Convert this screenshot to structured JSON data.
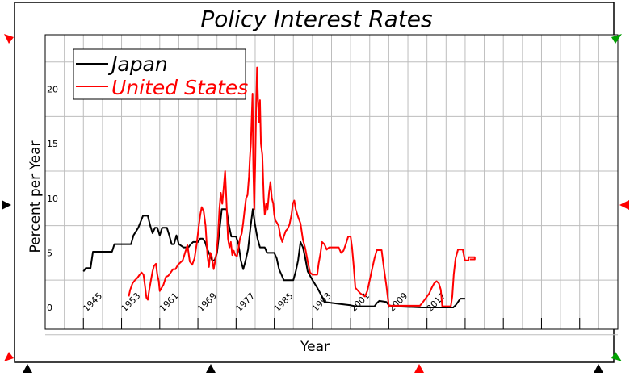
{
  "chart_data": {
    "type": "line",
    "title": "Policy Interest Rates",
    "xlabel": "Year",
    "ylabel": "Percent per Year",
    "x_ticks": [
      "1945",
      "1953",
      "1961",
      "1969",
      "1977",
      "1985",
      "1993",
      "2001",
      "2009",
      "2017"
    ],
    "y_ticks": [
      "0",
      "5",
      "10",
      "15",
      "20"
    ],
    "xlim": [
      1937,
      2057
    ],
    "ylim": [
      -2,
      25
    ],
    "grid": true,
    "legend_position": "top-left",
    "series": [
      {
        "name": "Japan",
        "color": "#000000",
        "points": [
          [
            1945.0,
            3.3
          ],
          [
            1945.5,
            3.6
          ],
          [
            1946.5,
            3.6
          ],
          [
            1947.0,
            5.1
          ],
          [
            1951.0,
            5.1
          ],
          [
            1951.5,
            5.8
          ],
          [
            1955.0,
            5.8
          ],
          [
            1955.5,
            6.6
          ],
          [
            1956.5,
            7.3
          ],
          [
            1957.5,
            8.4
          ],
          [
            1958.5,
            8.4
          ],
          [
            1959.0,
            7.5
          ],
          [
            1959.5,
            6.8
          ],
          [
            1960.0,
            7.3
          ],
          [
            1960.5,
            7.3
          ],
          [
            1961.0,
            6.6
          ],
          [
            1961.5,
            7.3
          ],
          [
            1962.5,
            7.3
          ],
          [
            1963.0,
            6.6
          ],
          [
            1963.5,
            5.8
          ],
          [
            1964.0,
            5.8
          ],
          [
            1964.5,
            6.6
          ],
          [
            1965.0,
            5.8
          ],
          [
            1966.0,
            5.5
          ],
          [
            1967.0,
            5.5
          ],
          [
            1967.5,
            5.8
          ],
          [
            1968.0,
            6.0
          ],
          [
            1969.0,
            6.0
          ],
          [
            1969.5,
            6.3
          ],
          [
            1970.0,
            6.3
          ],
          [
            1970.5,
            6.0
          ],
          [
            1971.0,
            5.3
          ],
          [
            1971.5,
            4.8
          ],
          [
            1972.0,
            4.3
          ],
          [
            1972.5,
            4.3
          ],
          [
            1973.0,
            5.0
          ],
          [
            1973.5,
            7.0
          ],
          [
            1974.0,
            9.0
          ],
          [
            1975.0,
            9.0
          ],
          [
            1975.5,
            7.5
          ],
          [
            1976.0,
            6.5
          ],
          [
            1977.0,
            6.5
          ],
          [
            1977.5,
            5.8
          ],
          [
            1978.0,
            4.3
          ],
          [
            1978.5,
            3.5
          ],
          [
            1979.0,
            4.3
          ],
          [
            1979.5,
            5.3
          ],
          [
            1980.0,
            7.3
          ],
          [
            1980.5,
            9.0
          ],
          [
            1981.0,
            7.5
          ],
          [
            1981.5,
            6.3
          ],
          [
            1982.0,
            5.5
          ],
          [
            1983.0,
            5.5
          ],
          [
            1983.5,
            5.0
          ],
          [
            1985.0,
            5.0
          ],
          [
            1985.5,
            4.5
          ],
          [
            1986.0,
            3.5
          ],
          [
            1986.5,
            3.0
          ],
          [
            1987.0,
            2.5
          ],
          [
            1989.0,
            2.5
          ],
          [
            1989.5,
            3.3
          ],
          [
            1990.0,
            4.3
          ],
          [
            1990.5,
            6.0
          ],
          [
            1991.0,
            5.5
          ],
          [
            1991.5,
            4.5
          ],
          [
            1992.0,
            3.3
          ],
          [
            1993.0,
            2.5
          ],
          [
            1994.0,
            1.8
          ],
          [
            1995.0,
            1.0
          ],
          [
            1995.5,
            0.5
          ],
          [
            1999.0,
            0.3
          ],
          [
            2001.0,
            0.2
          ],
          [
            2002.0,
            0.1
          ],
          [
            2006.0,
            0.1
          ],
          [
            2006.5,
            0.4
          ],
          [
            2007.0,
            0.6
          ],
          [
            2008.5,
            0.5
          ],
          [
            2009.0,
            0.2
          ],
          [
            2010.0,
            0.1
          ],
          [
            2016.0,
            0.0
          ],
          [
            2022.5,
            0.0
          ],
          [
            2023.0,
            0.2
          ],
          [
            2023.5,
            0.5
          ],
          [
            2024.0,
            0.8
          ],
          [
            2025.0,
            0.8
          ]
        ]
      },
      {
        "name": "United States",
        "color": "#ff0000",
        "points": [
          [
            1954.5,
            1.0
          ],
          [
            1954.8,
            1.6
          ],
          [
            1955.3,
            2.2
          ],
          [
            1955.8,
            2.5
          ],
          [
            1956.3,
            2.7
          ],
          [
            1956.8,
            3.0
          ],
          [
            1957.2,
            3.2
          ],
          [
            1957.6,
            3.0
          ],
          [
            1957.9,
            2.0
          ],
          [
            1958.2,
            0.9
          ],
          [
            1958.5,
            0.7
          ],
          [
            1958.8,
            1.6
          ],
          [
            1959.2,
            2.6
          ],
          [
            1959.5,
            3.3
          ],
          [
            1959.8,
            3.8
          ],
          [
            1960.2,
            4.0
          ],
          [
            1960.5,
            3.0
          ],
          [
            1960.8,
            2.4
          ],
          [
            1961.0,
            1.5
          ],
          [
            1961.4,
            1.8
          ],
          [
            1961.8,
            2.1
          ],
          [
            1962.3,
            2.8
          ],
          [
            1962.8,
            2.9
          ],
          [
            1963.3,
            3.2
          ],
          [
            1963.8,
            3.5
          ],
          [
            1964.3,
            3.5
          ],
          [
            1964.8,
            3.9
          ],
          [
            1965.3,
            4.1
          ],
          [
            1965.8,
            4.3
          ],
          [
            1966.3,
            5.0
          ],
          [
            1966.8,
            5.7
          ],
          [
            1967.3,
            4.2
          ],
          [
            1967.8,
            3.9
          ],
          [
            1968.3,
            4.5
          ],
          [
            1968.8,
            6.0
          ],
          [
            1969.2,
            7.5
          ],
          [
            1969.5,
            8.5
          ],
          [
            1969.8,
            9.2
          ],
          [
            1970.2,
            8.8
          ],
          [
            1970.6,
            7.5
          ],
          [
            1971.0,
            4.7
          ],
          [
            1971.3,
            3.7
          ],
          [
            1971.6,
            5.0
          ],
          [
            1971.9,
            4.7
          ],
          [
            1972.3,
            3.5
          ],
          [
            1972.6,
            4.2
          ],
          [
            1972.9,
            5.0
          ],
          [
            1973.2,
            6.5
          ],
          [
            1973.5,
            9.0
          ],
          [
            1973.8,
            10.5
          ],
          [
            1974.1,
            9.5
          ],
          [
            1974.4,
            11.0
          ],
          [
            1974.7,
            12.5
          ],
          [
            1975.0,
            9.5
          ],
          [
            1975.3,
            6.3
          ],
          [
            1975.6,
            5.5
          ],
          [
            1975.9,
            6.0
          ],
          [
            1976.2,
            4.8
          ],
          [
            1976.5,
            5.2
          ],
          [
            1976.8,
            4.8
          ],
          [
            1977.2,
            4.7
          ],
          [
            1977.5,
            5.4
          ],
          [
            1977.8,
            6.3
          ],
          [
            1978.2,
            6.8
          ],
          [
            1978.5,
            7.8
          ],
          [
            1978.8,
            9.0
          ],
          [
            1979.1,
            10.0
          ],
          [
            1979.4,
            10.3
          ],
          [
            1979.7,
            12.0
          ],
          [
            1979.9,
            13.8
          ],
          [
            1980.1,
            15.0
          ],
          [
            1980.3,
            17.6
          ],
          [
            1980.45,
            19.6
          ],
          [
            1980.6,
            13.0
          ],
          [
            1980.8,
            9.0
          ],
          [
            1981.0,
            13.0
          ],
          [
            1981.2,
            18.0
          ],
          [
            1981.4,
            22.0
          ],
          [
            1981.6,
            19.0
          ],
          [
            1981.8,
            17.0
          ],
          [
            1982.0,
            19.0
          ],
          [
            1982.2,
            15.0
          ],
          [
            1982.5,
            14.0
          ],
          [
            1982.8,
            10.0
          ],
          [
            1983.0,
            8.5
          ],
          [
            1983.3,
            9.5
          ],
          [
            1983.6,
            9.0
          ],
          [
            1983.9,
            10.5
          ],
          [
            1984.2,
            11.5
          ],
          [
            1984.5,
            10.0
          ],
          [
            1984.8,
            9.5
          ],
          [
            1985.0,
            8.5
          ],
          [
            1985.2,
            8.0
          ],
          [
            1985.5,
            7.8
          ],
          [
            1985.9,
            7.5
          ],
          [
            1986.3,
            6.5
          ],
          [
            1986.7,
            6.0
          ],
          [
            1987.0,
            6.5
          ],
          [
            1987.4,
            7.0
          ],
          [
            1987.8,
            7.2
          ],
          [
            1988.2,
            7.6
          ],
          [
            1988.6,
            8.5
          ],
          [
            1988.9,
            9.5
          ],
          [
            1989.2,
            9.8
          ],
          [
            1989.5,
            9.0
          ],
          [
            1990.0,
            8.3
          ],
          [
            1990.5,
            7.7
          ],
          [
            1991.0,
            6.2
          ],
          [
            1991.5,
            5.4
          ],
          [
            1992.0,
            4.2
          ],
          [
            1992.5,
            3.2
          ],
          [
            1993.0,
            3.0
          ],
          [
            1994.0,
            3.0
          ],
          [
            1994.3,
            4.0
          ],
          [
            1994.7,
            5.0
          ],
          [
            1995.0,
            6.0
          ],
          [
            1995.5,
            5.8
          ],
          [
            1996.0,
            5.3
          ],
          [
            1996.5,
            5.5
          ],
          [
            1998.5,
            5.5
          ],
          [
            1999.0,
            5.0
          ],
          [
            1999.5,
            5.2
          ],
          [
            2000.0,
            5.8
          ],
          [
            2000.5,
            6.5
          ],
          [
            2001.0,
            6.5
          ],
          [
            2001.3,
            5.5
          ],
          [
            2001.6,
            4.0
          ],
          [
            2002.0,
            1.8
          ],
          [
            2003.0,
            1.3
          ],
          [
            2004.0,
            1.0
          ],
          [
            2004.5,
            1.5
          ],
          [
            2005.0,
            2.5
          ],
          [
            2005.5,
            3.5
          ],
          [
            2006.0,
            4.5
          ],
          [
            2006.5,
            5.25
          ],
          [
            2007.5,
            5.25
          ],
          [
            2008.0,
            3.5
          ],
          [
            2008.5,
            2.0
          ],
          [
            2009.0,
            0.15
          ],
          [
            2015.5,
            0.15
          ],
          [
            2016.0,
            0.4
          ],
          [
            2017.0,
            1.0
          ],
          [
            2017.5,
            1.3
          ],
          [
            2018.0,
            1.8
          ],
          [
            2018.5,
            2.2
          ],
          [
            2019.0,
            2.4
          ],
          [
            2019.5,
            2.2
          ],
          [
            2019.9,
            1.6
          ],
          [
            2020.2,
            0.1
          ],
          [
            2022.0,
            0.1
          ],
          [
            2022.3,
            1.0
          ],
          [
            2022.6,
            3.0
          ],
          [
            2023.0,
            4.5
          ],
          [
            2023.5,
            5.3
          ],
          [
            2024.5,
            5.3
          ],
          [
            2024.8,
            4.6
          ],
          [
            2025.0,
            4.3
          ],
          [
            2025.7,
            4.3
          ],
          [
            2025.7,
            4.6
          ],
          [
            2027.0,
            4.6
          ],
          [
            2027.0,
            4.4
          ],
          [
            2026.0,
            4.4
          ]
        ]
      }
    ]
  }
}
